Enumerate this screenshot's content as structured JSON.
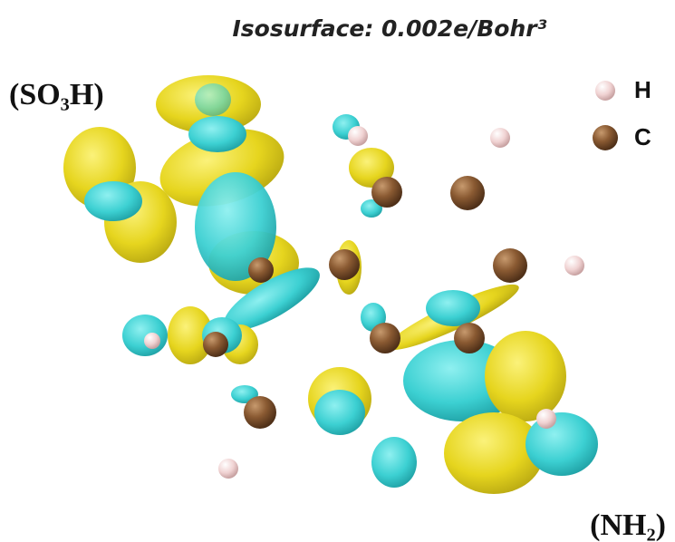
{
  "title": "Isosurface: 0.002e/Bohr³",
  "labels": {
    "top_left": "(SO₃H)",
    "bottom_right": "(NH₂)"
  },
  "legend": [
    {
      "label": "H"
    },
    {
      "label": "C"
    }
  ]
}
